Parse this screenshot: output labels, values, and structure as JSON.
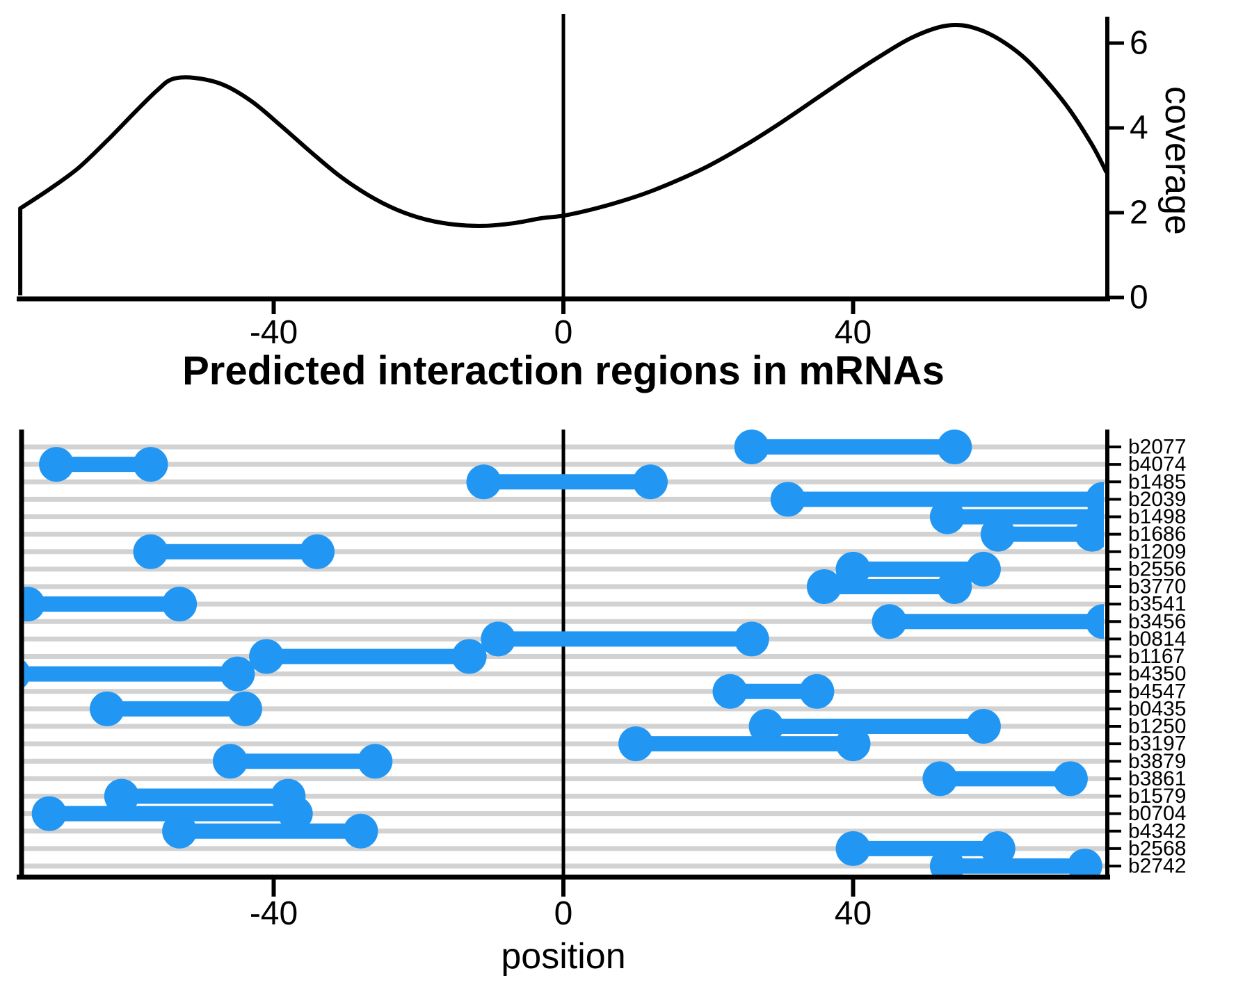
{
  "figure_title": "Predicted interaction regions in mRNAs",
  "colors": {
    "segment_blue": "#2196F3",
    "gridline_gray": "#D2D2D2",
    "axis_black": "#000000",
    "background": "#FFFFFF"
  },
  "chart_data": [
    {
      "type": "line",
      "name": "coverage-profile",
      "ylabel": "coverage",
      "xlabel": "",
      "x_ticks": [
        -40,
        0,
        40
      ],
      "y_ticks": [
        0,
        2,
        4,
        6
      ],
      "xlim": [
        -75,
        75
      ],
      "ylim": [
        0,
        6.7
      ],
      "legend": null,
      "grid": false,
      "x": [
        -75,
        -71,
        -67,
        -63,
        -59,
        -56,
        -54,
        -51,
        -47,
        -43,
        -39,
        -35,
        -31,
        -27,
        -23,
        -19,
        -15,
        -11,
        -7,
        -3,
        0,
        4,
        8,
        12,
        16,
        20,
        25,
        30,
        35,
        40,
        44,
        48,
        52,
        55,
        58,
        61,
        64,
        67,
        70,
        73,
        75
      ],
      "y": [
        2.1,
        2.55,
        3.05,
        3.7,
        4.4,
        4.9,
        5.15,
        5.18,
        5.02,
        4.62,
        4.05,
        3.45,
        2.88,
        2.42,
        2.07,
        1.84,
        1.72,
        1.69,
        1.75,
        1.87,
        1.93,
        2.08,
        2.27,
        2.5,
        2.78,
        3.1,
        3.58,
        4.12,
        4.7,
        5.28,
        5.72,
        6.12,
        6.38,
        6.42,
        6.28,
        6.0,
        5.6,
        5.05,
        4.4,
        3.6,
        2.95
      ]
    },
    {
      "type": "segment",
      "name": "predicted-interaction-regions",
      "title": "Predicted interaction regions in mRNAs",
      "xlabel": "position",
      "ylabel": "",
      "x_ticks": [
        -40,
        0,
        40
      ],
      "xlim": [
        -75,
        75
      ],
      "grid": true,
      "rows": [
        {
          "label": "b2077",
          "start": 26,
          "end": 54
        },
        {
          "label": "b4074",
          "start": -70,
          "end": -57
        },
        {
          "label": "b1485",
          "start": -11,
          "end": 12
        },
        {
          "label": "b2039",
          "start": 31,
          "end": 74.5
        },
        {
          "label": "b1498",
          "start": 53,
          "end": 74.5
        },
        {
          "label": "b1686",
          "start": 60,
          "end": 73
        },
        {
          "label": "b1209",
          "start": -57,
          "end": -34
        },
        {
          "label": "b2556",
          "start": 40,
          "end": 58
        },
        {
          "label": "b3770",
          "start": 36,
          "end": 54
        },
        {
          "label": "b3541",
          "start": -74,
          "end": -53
        },
        {
          "label": "b3456",
          "start": 45,
          "end": 74.5
        },
        {
          "label": "b0814",
          "start": -9,
          "end": 26
        },
        {
          "label": "b1167",
          "start": -41,
          "end": -13
        },
        {
          "label": "b4350",
          "start": -76,
          "end": -45
        },
        {
          "label": "b4547",
          "start": 23,
          "end": 35
        },
        {
          "label": "b0435",
          "start": -63,
          "end": -44
        },
        {
          "label": "b1250",
          "start": 28,
          "end": 58
        },
        {
          "label": "b3197",
          "start": 10,
          "end": 40
        },
        {
          "label": "b3879",
          "start": -46,
          "end": -26
        },
        {
          "label": "b3861",
          "start": 52,
          "end": 70
        },
        {
          "label": "b1579",
          "start": -61,
          "end": -38
        },
        {
          "label": "b0704",
          "start": -71,
          "end": -37
        },
        {
          "label": "b4342",
          "start": -53,
          "end": -28
        },
        {
          "label": "b2568",
          "start": 40,
          "end": 60
        },
        {
          "label": "b2742",
          "start": 53,
          "end": 72
        }
      ]
    }
  ]
}
